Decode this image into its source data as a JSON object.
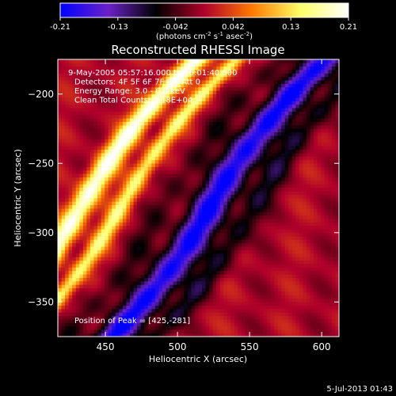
{
  "chart_data": {
    "type": "heatmap",
    "title": "Reconstructed RHESSI Image",
    "xlabel": "Heliocentric X (arcsec)",
    "ylabel": "Heliocentric Y (arcsec)",
    "xlim": [
      417,
      612
    ],
    "ylim": [
      -375,
      -175
    ],
    "x_ticks": [
      450,
      500,
      550,
      600
    ],
    "y_ticks": [
      -200,
      -250,
      -300,
      -350
    ],
    "colorbar": {
      "min": -0.21,
      "max": 0.21,
      "ticks": [
        "-0.21",
        "-0.13",
        "-0.042",
        "0.042",
        "0.13",
        "0.21"
      ],
      "units_label": "(photons cm",
      "units_exp1": "-2",
      "units_mid": " s",
      "units_exp2": "-1",
      "units_mid2": " asec",
      "units_exp3": "-2",
      "units_end": ")",
      "colors": [
        "#0000ff",
        "#6a22c8",
        "#000000",
        "#b0002a",
        "#ff7a00",
        "#ffff66",
        "#ffffff"
      ]
    },
    "annotations": [
      "9-May-2005 05:57:16.000 to 06:01:40.000",
      "Detectors: 4F 5F 6F 7F 8F, Att 0",
      "Energy Range: 3.0 - 6.0 keV",
      "Clean     Total Counts: 2.18E+04"
    ],
    "peak_label": "Position of Peak = [425,-281]",
    "peak": [
      425,
      -281
    ],
    "bands": [
      {
        "offset": -60,
        "width": 9,
        "value": 0.21
      },
      {
        "offset": -32,
        "width": 7,
        "value": 0.15
      },
      {
        "offset": -2,
        "width": 10,
        "value": -0.05
      },
      {
        "offset": 30,
        "width": 13,
        "value": -0.21
      },
      {
        "offset": 60,
        "width": 10,
        "value": -0.08
      }
    ],
    "timestamp": "5-Jul-2013 01:43"
  }
}
